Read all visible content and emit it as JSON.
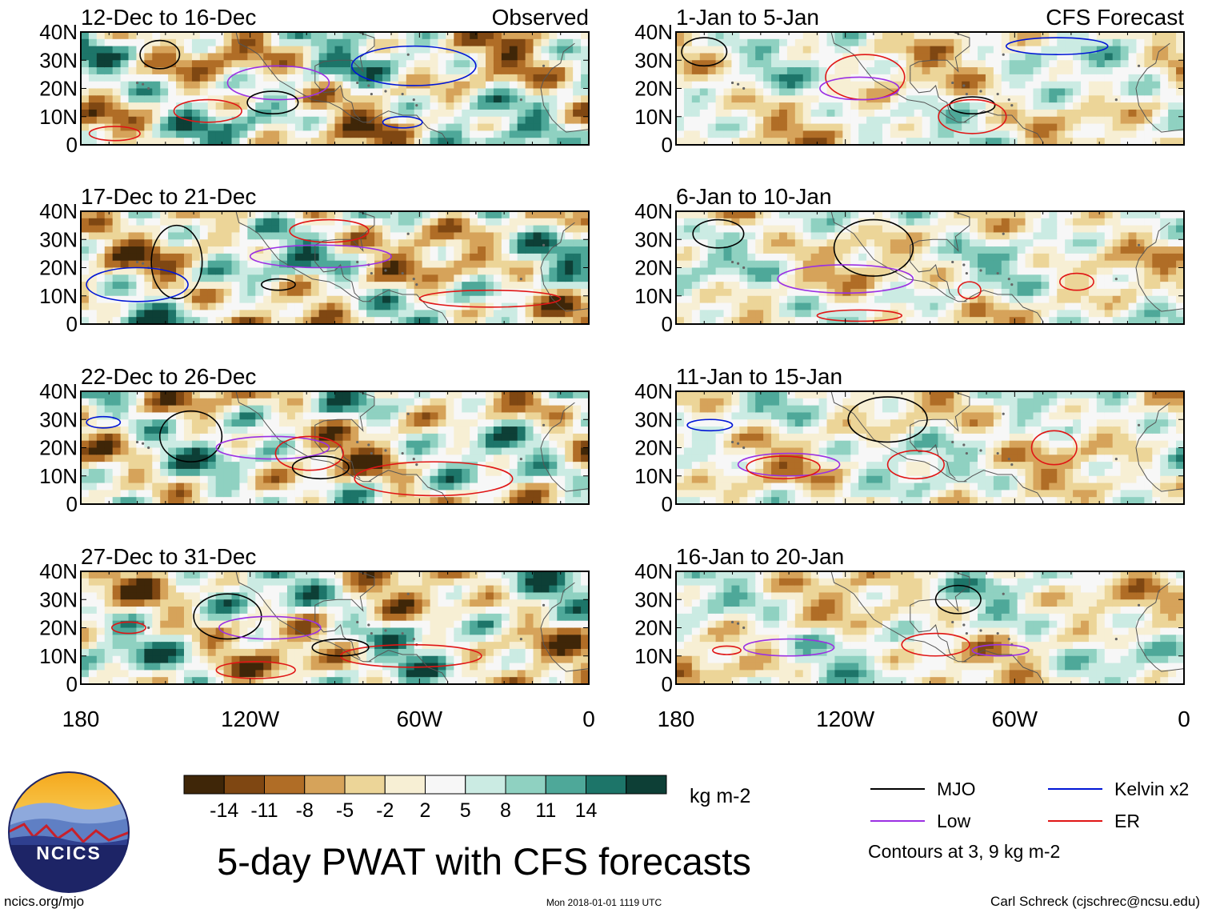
{
  "chart_data": {
    "type": "heatmap",
    "title": "5-day PWAT with CFS forecasts",
    "variable": "5-day precipitable water (PWAT) anomaly",
    "units": "kg m-2",
    "x_ticks": [
      "180",
      "120W",
      "60W",
      "0"
    ],
    "xlim": [
      -180,
      0
    ],
    "y_ticks": [
      "0",
      "10N",
      "20N",
      "30N",
      "40N"
    ],
    "ylim": [
      0,
      40
    ],
    "columns": [
      {
        "label": "Observed",
        "panels": [
          "12-Dec to 16-Dec",
          "17-Dec to 21-Dec",
          "22-Dec to 26-Dec",
          "27-Dec to 31-Dec"
        ]
      },
      {
        "label": "CFS Forecast",
        "panels": [
          "1-Jan to 5-Jan",
          "6-Jan to 10-Jan",
          "11-Jan to 15-Jan",
          "16-Jan to 20-Jan"
        ]
      }
    ],
    "colorbar": {
      "ticks": [
        "-14",
        "-11",
        "-8",
        "-5",
        "-2",
        "2",
        "5",
        "8",
        "11",
        "14"
      ],
      "colors": [
        "#3f2608",
        "#7f4712",
        "#b06d26",
        "#d6a35a",
        "#ecd598",
        "#f7efd4",
        "#f7f7f7",
        "#cbebe3",
        "#8fd1c1",
        "#4ea899",
        "#1d7569",
        "#0d3f36"
      ]
    },
    "legend": {
      "items": [
        {
          "label": "MJO",
          "color": "#000000"
        },
        {
          "label": "Kelvin x2",
          "color": "#0015d6"
        },
        {
          "label": "Low",
          "color": "#9b30e3"
        },
        {
          "label": "ER",
          "color": "#e01515"
        }
      ],
      "note": "Contours at 3, 9 kg m-2"
    }
  },
  "logo": {
    "text": "NCICS"
  },
  "footer": {
    "left": "ncics.org/mjo",
    "center": "Mon 2018-01-01 1119 UTC",
    "right": "Carl Schreck (cjschrec@ncsu.edu)"
  }
}
